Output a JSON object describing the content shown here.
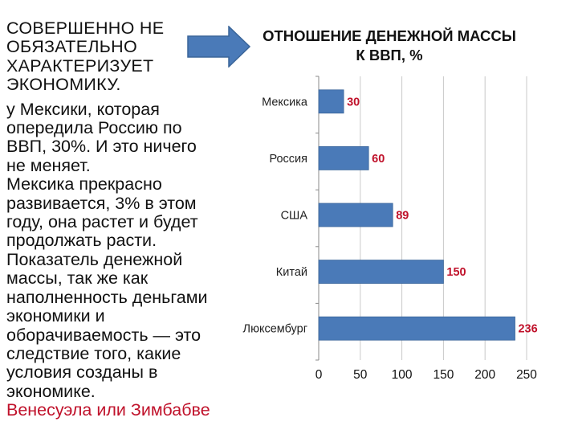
{
  "text_block": {
    "heading_lines": [
      "СОВЕРШЕННО НЕ",
      "ОБЯЗАТЕЛЬНО",
      "ХАРАКТЕРИЗУЕТ",
      "ЭКОНОМИКУ."
    ],
    "body_lines": [
      "у Мексики, которая",
      "опередила Россию по",
      "ВВП, 30%.  И это ничего",
      "не меняет.",
      "Мексика прекрасно",
      "развивается, 3% в этом",
      "году, она растет и будет",
      "продолжать расти.",
      "Показатель денежной",
      "массы, так же как",
      "наполненность деньгами",
      "экономики и",
      "оборачиваемость — это",
      "следствие того, какие",
      "условия созданы в",
      "экономике."
    ],
    "highlight_line": "Венесуэла или Зимбабве"
  },
  "arrow": {
    "icon": "right-arrow-icon",
    "color": "#4a7ab8"
  },
  "colors": {
    "bar": "#4a7ab8",
    "value_label": "#c0122b",
    "gridline": "#c9c9c9",
    "accent_text": "#c0122b"
  },
  "chart_data": {
    "type": "bar",
    "orientation": "horizontal",
    "title_lines": [
      "ОТНОШЕНИЕ ДЕНЕЖНОЙ МАССЫ",
      "К ВВП, %"
    ],
    "categories": [
      "Мексика",
      "Россия",
      "США",
      "Китай",
      "Люксембург"
    ],
    "values": [
      30,
      60,
      89,
      150,
      236
    ],
    "value_labels": [
      "30",
      "60",
      "89",
      "150",
      "236"
    ],
    "xlim": [
      0,
      250
    ],
    "x_ticks": [
      0,
      50,
      100,
      150,
      200,
      250
    ],
    "x_tick_labels": [
      "0",
      "50",
      "100",
      "150",
      "200",
      "250"
    ],
    "grid": "vertical",
    "legend": "none"
  }
}
